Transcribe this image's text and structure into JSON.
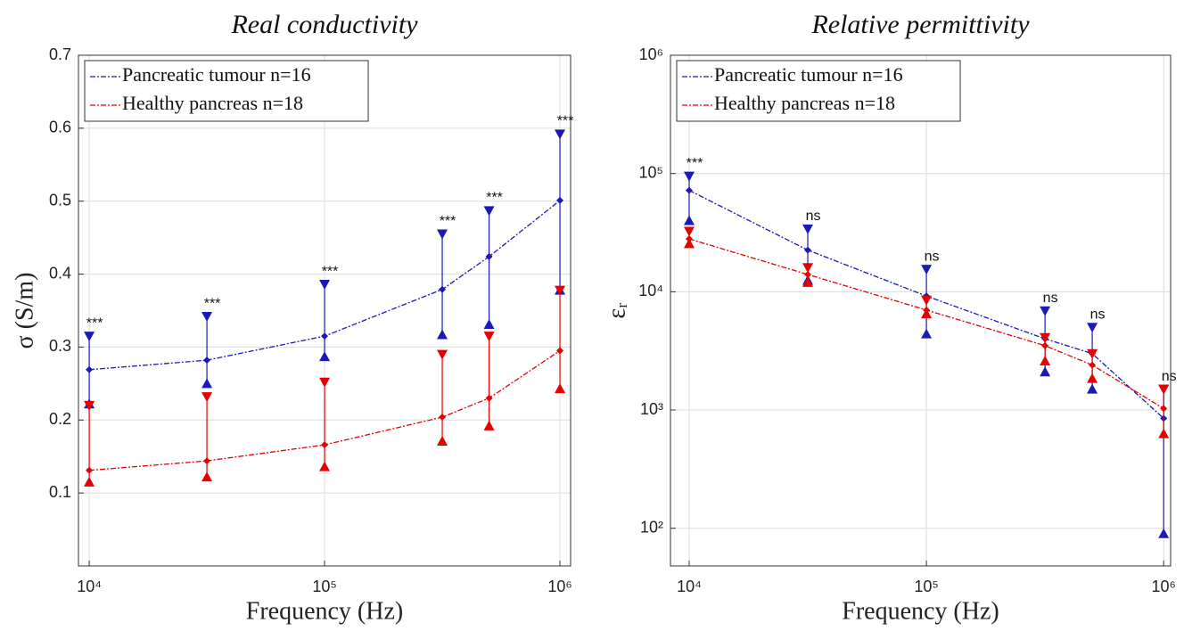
{
  "chart_data": [
    {
      "type": "errorbar-line",
      "title": "Real conductivity",
      "xlabel": "Frequency (Hz)",
      "ylabel": "σ (S/m)",
      "xscale": "log",
      "yscale": "linear",
      "grid": true,
      "legend": "upper left",
      "x": [
        10000,
        31623,
        100000,
        316228,
        500000,
        1000000
      ],
      "xlim": [
        9000,
        1110000
      ],
      "xticks": [
        {
          "value": 10000,
          "label": "10⁴"
        },
        {
          "value": 100000,
          "label": "10⁵"
        },
        {
          "value": 1000000,
          "label": "10⁶"
        }
      ],
      "ylim": [
        0,
        0.7
      ],
      "yticks": [
        0.1,
        0.2,
        0.3,
        0.4,
        0.5,
        0.6,
        0.7
      ],
      "series": [
        {
          "name": "Pancreatic tumour n=16",
          "color": "#1a1ab8",
          "values": [
            0.269,
            0.282,
            0.315,
            0.379,
            0.424,
            0.501
          ],
          "upper": [
            0.315,
            0.342,
            0.386,
            0.455,
            0.487,
            0.592
          ],
          "lower": [
            0.222,
            0.25,
            0.287,
            0.317,
            0.331,
            0.378
          ]
        },
        {
          "name": "Healthy pancreas n=18",
          "color": "#e60000",
          "values": [
            0.131,
            0.144,
            0.166,
            0.204,
            0.23,
            0.295
          ],
          "upper": [
            0.22,
            0.232,
            0.252,
            0.29,
            0.315,
            0.378
          ],
          "lower": [
            0.115,
            0.122,
            0.136,
            0.171,
            0.192,
            0.243
          ]
        }
      ],
      "annotations": [
        "***",
        "***",
        "***",
        "***",
        "***",
        "***"
      ]
    },
    {
      "type": "errorbar-line",
      "title": "Relative permittivity",
      "xlabel": "Frequency (Hz)",
      "ylabel": "εᵣ",
      "xscale": "log",
      "yscale": "log",
      "grid": true,
      "legend": "upper left",
      "x": [
        10000,
        31623,
        100000,
        316228,
        500000,
        1000000
      ],
      "xlim": [
        8340,
        1070000
      ],
      "xticks": [
        {
          "value": 10000,
          "label": "10⁴"
        },
        {
          "value": 100000,
          "label": "10⁵"
        },
        {
          "value": 1000000,
          "label": "10⁶"
        }
      ],
      "ylim": [
        48,
        1000000
      ],
      "yticks": [
        {
          "value": 100,
          "label": "10²"
        },
        {
          "value": 1000,
          "label": "10³"
        },
        {
          "value": 10000,
          "label": "10⁴"
        },
        {
          "value": 100000,
          "label": "10⁵"
        },
        {
          "value": 1000000,
          "label": "10⁶"
        }
      ],
      "series": [
        {
          "name": "Pancreatic tumour n=16",
          "color": "#1a1ab8",
          "values": [
            72000,
            22500,
            9200,
            4000,
            3000,
            850
          ],
          "upper": [
            95000,
            34000,
            15500,
            6900,
            5000,
            1500
          ],
          "lower": [
            40000,
            12500,
            4400,
            2100,
            1500,
            90
          ]
        },
        {
          "name": "Healthy pancreas n=18",
          "color": "#e60000",
          "values": [
            28000,
            14000,
            7000,
            3500,
            2400,
            1030
          ],
          "upper": [
            32500,
            16000,
            8500,
            4100,
            3000,
            1500
          ],
          "lower": [
            25500,
            12000,
            6500,
            2600,
            1850,
            630
          ]
        }
      ],
      "annotations": [
        "***",
        "ns",
        "ns",
        "ns",
        "ns",
        "ns"
      ]
    }
  ]
}
